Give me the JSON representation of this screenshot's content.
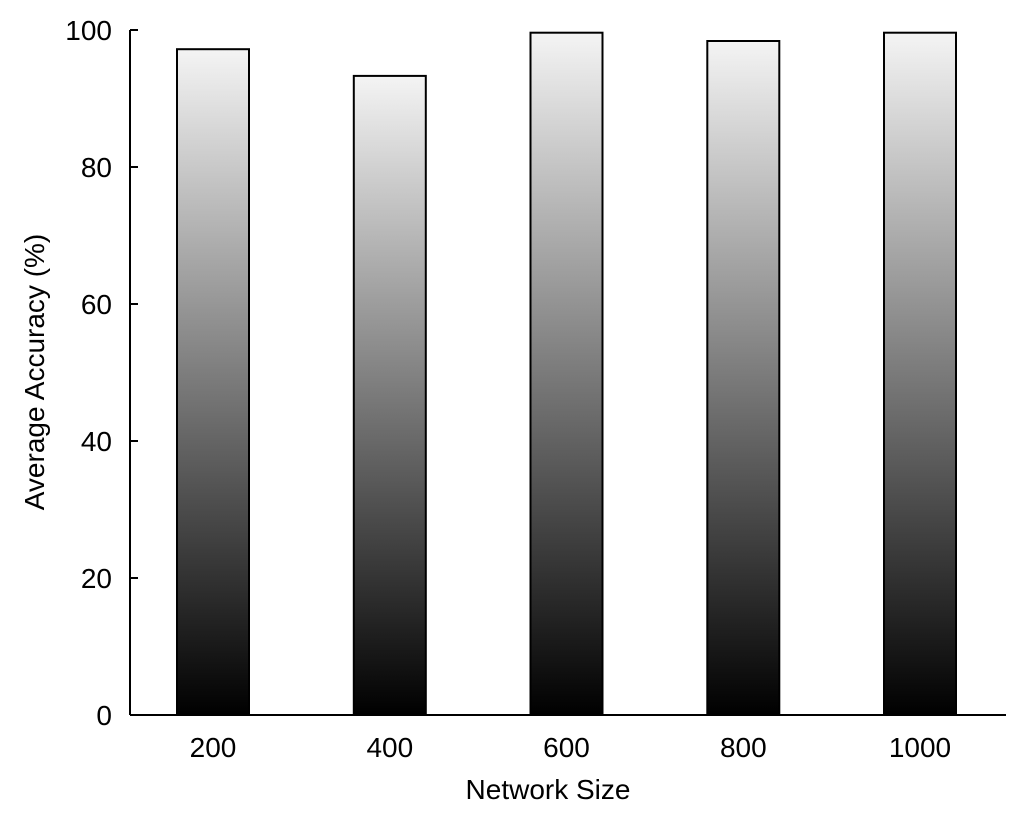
{
  "chart_data": {
    "type": "bar",
    "categories": [
      "200",
      "400",
      "600",
      "800",
      "1000"
    ],
    "values": [
      97.2,
      93.3,
      99.6,
      98.4,
      99.6
    ],
    "xlabel": "Network Size",
    "ylabel": "Average Accuracy (%)",
    "ylim": [
      0,
      100
    ],
    "yticks": [
      0,
      20,
      40,
      60,
      80,
      100
    ],
    "grid": false,
    "legend": "none",
    "bar_fill": {
      "top_color": "#f4f4f4",
      "bottom_color": "#000000",
      "edge_color": "#000000"
    }
  }
}
